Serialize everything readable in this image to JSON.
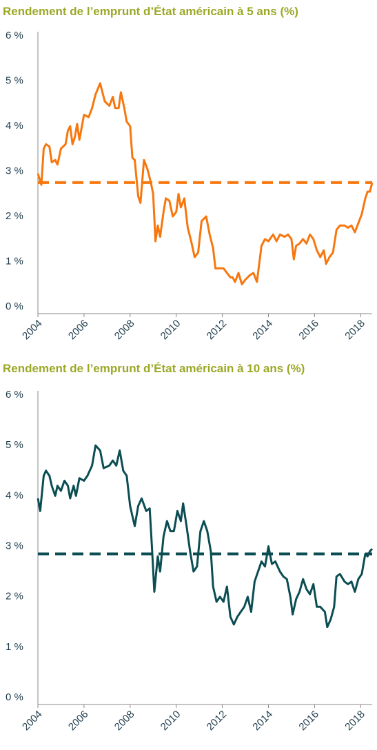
{
  "chart_data": [
    {
      "type": "line",
      "title": "Rendement de l’emprunt d’État américain à 5 ans (%)",
      "color": "#f7770f",
      "reference_line": 2.75,
      "xlim": [
        2004,
        2018.5
      ],
      "xticks": [
        2004,
        2006,
        2008,
        2010,
        2012,
        2014,
        2016,
        2018
      ],
      "ylim": [
        0,
        6
      ],
      "yticks": [
        {
          "value": 0,
          "label": "0 %"
        },
        {
          "value": 1,
          "label": "1 %"
        },
        {
          "value": 2,
          "label": "2 %"
        },
        {
          "value": 3,
          "label": "3 %"
        },
        {
          "value": 4,
          "label": "4 %"
        },
        {
          "value": 5,
          "label": "5 %"
        },
        {
          "value": 6,
          "label": "6 %"
        }
      ],
      "x": [
        2004.0,
        2004.15,
        2004.25,
        2004.35,
        2004.5,
        2004.6,
        2004.75,
        2004.85,
        2005.0,
        2005.2,
        2005.3,
        2005.4,
        2005.5,
        2005.6,
        2005.7,
        2005.8,
        2006.0,
        2006.2,
        2006.35,
        2006.5,
        2006.7,
        2006.9,
        2007.1,
        2007.25,
        2007.35,
        2007.5,
        2007.6,
        2007.75,
        2007.85,
        2008.0,
        2008.1,
        2008.2,
        2008.35,
        2008.45,
        2008.6,
        2008.75,
        2008.9,
        2009.0,
        2009.1,
        2009.2,
        2009.3,
        2009.45,
        2009.55,
        2009.7,
        2009.85,
        2010.0,
        2010.1,
        2010.2,
        2010.35,
        2010.5,
        2010.65,
        2010.8,
        2010.95,
        2011.1,
        2011.3,
        2011.45,
        2011.6,
        2011.7,
        2011.9,
        2012.05,
        2012.2,
        2012.35,
        2012.45,
        2012.55,
        2012.7,
        2012.85,
        2013.0,
        2013.2,
        2013.35,
        2013.5,
        2013.7,
        2013.85,
        2014.0,
        2014.2,
        2014.35,
        2014.5,
        2014.7,
        2014.85,
        2015.0,
        2015.1,
        2015.2,
        2015.35,
        2015.5,
        2015.65,
        2015.8,
        2015.95,
        2016.1,
        2016.25,
        2016.4,
        2016.5,
        2016.65,
        2016.8,
        2016.95,
        2017.1,
        2017.3,
        2017.45,
        2017.6,
        2017.75,
        2017.9,
        2018.05,
        2018.2,
        2018.3,
        2018.4,
        2018.5
      ],
      "values": [
        2.95,
        2.7,
        3.5,
        3.6,
        3.55,
        3.2,
        3.25,
        3.15,
        3.5,
        3.6,
        3.9,
        4.0,
        3.6,
        3.75,
        4.05,
        3.7,
        4.25,
        4.2,
        4.4,
        4.7,
        4.95,
        4.55,
        4.45,
        4.65,
        4.4,
        4.4,
        4.75,
        4.4,
        4.1,
        4.0,
        3.3,
        3.25,
        2.45,
        2.3,
        3.25,
        3.05,
        2.75,
        2.5,
        1.45,
        1.8,
        1.55,
        2.1,
        2.4,
        2.35,
        2.0,
        2.1,
        2.5,
        2.2,
        2.4,
        1.75,
        1.45,
        1.1,
        1.2,
        1.9,
        2.0,
        1.6,
        1.3,
        0.85,
        0.85,
        0.85,
        0.75,
        0.65,
        0.65,
        0.55,
        0.75,
        0.5,
        0.6,
        0.7,
        0.75,
        0.55,
        1.35,
        1.5,
        1.45,
        1.6,
        1.45,
        1.6,
        1.55,
        1.6,
        1.5,
        1.05,
        1.35,
        1.4,
        1.5,
        1.4,
        1.6,
        1.5,
        1.25,
        1.1,
        1.25,
        0.95,
        1.1,
        1.2,
        1.7,
        1.8,
        1.8,
        1.75,
        1.8,
        1.65,
        1.85,
        2.05,
        2.4,
        2.55,
        2.55,
        2.75
      ]
    },
    {
      "type": "line",
      "title": "Rendement de l’emprunt d’État américain à 10 ans (%)",
      "color": "#0b4d52",
      "reference_line": 2.85,
      "xlim": [
        2004,
        2018.5
      ],
      "xticks": [
        2004,
        2006,
        2008,
        2010,
        2012,
        2014,
        2016,
        2018
      ],
      "ylim": [
        0,
        6
      ],
      "yticks": [
        {
          "value": 0,
          "label": "0 %"
        },
        {
          "value": 1,
          "label": "1 %"
        },
        {
          "value": 2,
          "label": "2 %"
        },
        {
          "value": 3,
          "label": "3 %"
        },
        {
          "value": 4,
          "label": "4 %"
        },
        {
          "value": 5,
          "label": "5 %"
        },
        {
          "value": 6,
          "label": "6 %"
        }
      ],
      "x": [
        2004.0,
        2004.1,
        2004.25,
        2004.35,
        2004.5,
        2004.6,
        2004.75,
        2004.85,
        2005.0,
        2005.15,
        2005.3,
        2005.4,
        2005.55,
        2005.65,
        2005.8,
        2006.0,
        2006.15,
        2006.35,
        2006.5,
        2006.7,
        2006.85,
        2007.1,
        2007.25,
        2007.4,
        2007.55,
        2007.7,
        2007.85,
        2008.0,
        2008.1,
        2008.2,
        2008.35,
        2008.5,
        2008.7,
        2008.85,
        2008.95,
        2009.05,
        2009.2,
        2009.3,
        2009.45,
        2009.6,
        2009.75,
        2009.9,
        2010.05,
        2010.2,
        2010.3,
        2010.45,
        2010.6,
        2010.75,
        2010.9,
        2011.05,
        2011.2,
        2011.35,
        2011.5,
        2011.6,
        2011.75,
        2011.9,
        2012.05,
        2012.2,
        2012.35,
        2012.5,
        2012.65,
        2012.8,
        2012.95,
        2013.1,
        2013.25,
        2013.4,
        2013.55,
        2013.7,
        2013.85,
        2014.0,
        2014.15,
        2014.3,
        2014.5,
        2014.65,
        2014.8,
        2014.95,
        2015.05,
        2015.2,
        2015.35,
        2015.5,
        2015.65,
        2015.8,
        2015.95,
        2016.1,
        2016.25,
        2016.45,
        2016.55,
        2016.7,
        2016.85,
        2016.95,
        2017.1,
        2017.3,
        2017.45,
        2017.6,
        2017.75,
        2017.9,
        2018.05,
        2018.2,
        2018.3,
        2018.4,
        2018.5
      ],
      "values": [
        3.95,
        3.7,
        4.4,
        4.5,
        4.4,
        4.2,
        4.0,
        4.2,
        4.1,
        4.3,
        4.2,
        3.95,
        4.2,
        4.0,
        4.35,
        4.3,
        4.4,
        4.6,
        5.0,
        4.9,
        4.55,
        4.6,
        4.7,
        4.6,
        4.9,
        4.5,
        4.4,
        3.8,
        3.6,
        3.4,
        3.8,
        3.95,
        3.7,
        3.75,
        2.95,
        2.1,
        2.8,
        2.5,
        3.2,
        3.5,
        3.3,
        3.3,
        3.7,
        3.5,
        3.85,
        3.4,
        2.9,
        2.5,
        2.6,
        3.3,
        3.5,
        3.3,
        2.9,
        2.2,
        1.9,
        2.0,
        1.9,
        2.2,
        1.6,
        1.45,
        1.6,
        1.7,
        1.8,
        2.0,
        1.7,
        2.3,
        2.5,
        2.7,
        2.6,
        3.0,
        2.65,
        2.7,
        2.5,
        2.4,
        2.35,
        2.0,
        1.65,
        1.95,
        2.1,
        2.35,
        2.15,
        2.05,
        2.25,
        1.8,
        1.8,
        1.7,
        1.4,
        1.55,
        1.8,
        2.4,
        2.45,
        2.3,
        2.25,
        2.3,
        2.1,
        2.35,
        2.45,
        2.85,
        2.8,
        2.9,
        2.95
      ]
    }
  ]
}
